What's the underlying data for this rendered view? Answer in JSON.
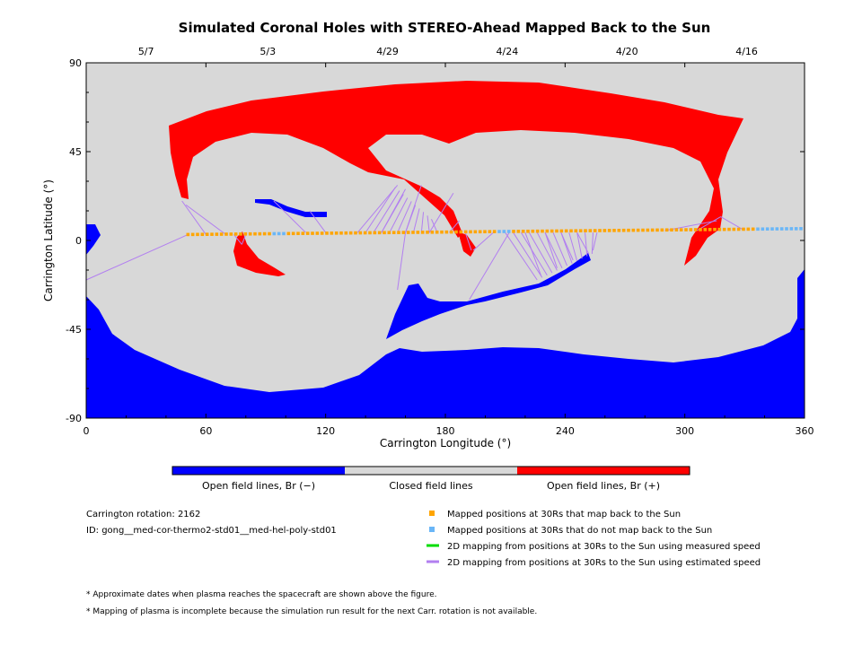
{
  "chart_data": {
    "type": "map",
    "title": "Simulated Coronal Holes with STEREO-Ahead Mapped Back to the Sun",
    "xlabel": "Carrington Longitude (°)",
    "ylabel": "Carrington Latitude (°)",
    "xlim": [
      0,
      360
    ],
    "ylim": [
      -90,
      90
    ],
    "xticks": [
      "0",
      "60",
      "120",
      "180",
      "240",
      "300",
      "360"
    ],
    "yticks": [
      "90",
      "45",
      "0",
      "-45",
      "-90"
    ],
    "top_axis_dates": [
      {
        "label": "5/7",
        "lon": 30
      },
      {
        "label": "5/3",
        "lon": 91
      },
      {
        "label": "4/29",
        "lon": 151
      },
      {
        "label": "4/24",
        "lon": 211
      },
      {
        "label": "4/20",
        "lon": 271
      },
      {
        "label": "4/16",
        "lon": 331
      }
    ],
    "colorbar": [
      {
        "label": "Open field lines, Br (−)",
        "color": "#0000ff"
      },
      {
        "label": "Closed field lines",
        "color": "#d8d8d8"
      },
      {
        "label": "Open field lines, Br (+)",
        "color": "#ff0000"
      }
    ],
    "legend": [
      {
        "label": "Mapped positions at 30Rs that map back to the Sun",
        "color": "#ffa500",
        "marker": "square"
      },
      {
        "label": "Mapped positions at 30Rs that do not map back to the Sun",
        "color": "#6ab6f7",
        "marker": "square"
      },
      {
        "label": "2D mapping from positions at 30Rs to the Sun using measured speed",
        "color": "#00dd00",
        "marker": "line"
      },
      {
        "label": "2D mapping from positions at 30Rs to the Sun using estimated speed",
        "color": "#b27ff0",
        "marker": "line"
      }
    ],
    "spacecraft_track": {
      "lon_start": 51,
      "lon_end": 360,
      "lat_start": 3,
      "lat_end": 6
    }
  },
  "info": {
    "rotation": "Carrington rotation: 2162",
    "run_id": "ID: gong__med-cor-thermo2-std01__med-hel-poly-std01"
  },
  "notes": [
    "* Approximate dates when plasma reaches the spacecraft are shown above the figure.",
    "* Mapping of plasma is incomplete because the simulation run result for the next Carr. rotation is not available."
  ],
  "colors": {
    "closed": "#d8d8d8",
    "negative": "#0000ff",
    "positive": "#ff0000",
    "mapped": "#ffa500",
    "unmapped": "#6ab6f7",
    "estimated": "#b27ff0",
    "measured": "#00dd00"
  }
}
